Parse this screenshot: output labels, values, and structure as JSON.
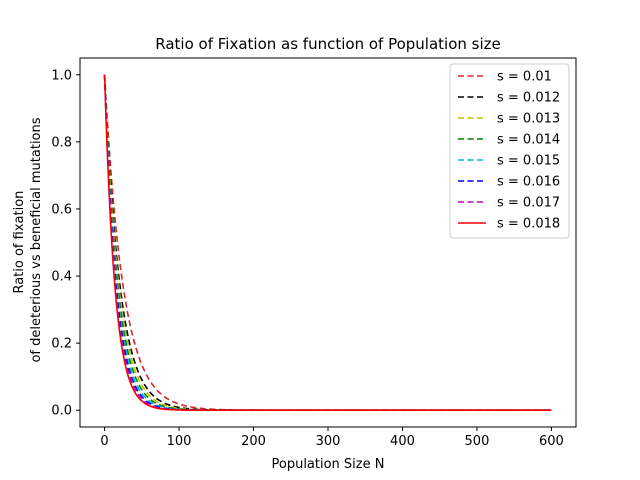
{
  "chart_data": {
    "type": "line",
    "title": "Ratio of Fixation as function of Population size",
    "xlabel": "Population Size N",
    "ylabel": [
      "Ratio of fixation",
      "of deleterious vs beneficial mutations"
    ],
    "xlim": [
      -33,
      633
    ],
    "ylim": [
      -0.05,
      1.05
    ],
    "xticks": [
      0,
      100,
      200,
      300,
      400,
      500,
      600
    ],
    "yticks": [
      0.0,
      0.2,
      0.4,
      0.6,
      0.8,
      1.0
    ],
    "legend_position": "upper-right",
    "x_range": [
      0,
      600
    ],
    "formula": "exp(-4*N*s)",
    "series": [
      {
        "name": "s = 0.01",
        "s": 0.01,
        "color": "#d62728",
        "dash": true
      },
      {
        "name": "s = 0.012",
        "s": 0.012,
        "color": "#000000",
        "dash": true
      },
      {
        "name": "s = 0.013",
        "s": 0.013,
        "color": "#bfbf00",
        "dash": true
      },
      {
        "name": "s = 0.014",
        "s": 0.014,
        "color": "#008000",
        "dash": true
      },
      {
        "name": "s = 0.015",
        "s": 0.015,
        "color": "#00bfbf",
        "dash": true
      },
      {
        "name": "s = 0.016",
        "s": 0.016,
        "color": "#0000ff",
        "dash": true
      },
      {
        "name": "s = 0.017",
        "s": 0.017,
        "color": "#bf00bf",
        "dash": true
      },
      {
        "name": "s = 0.018",
        "s": 0.018,
        "color": "#ff0000",
        "dash": false
      }
    ]
  }
}
